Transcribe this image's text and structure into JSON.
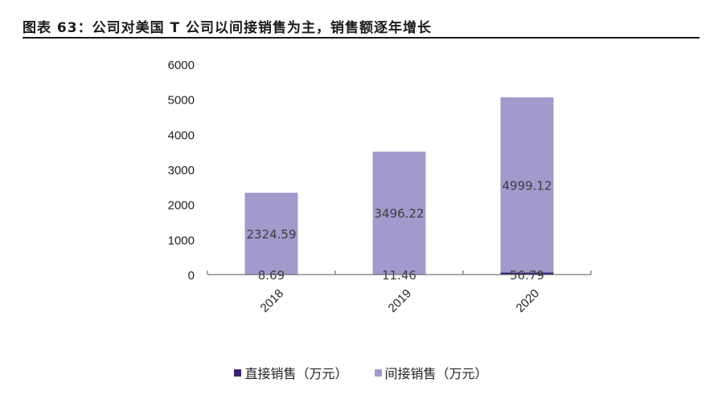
{
  "header": {
    "title": "图表 63：公司对美国 T 公司以间接销售为主，销售额逐年增长"
  },
  "colors": {
    "direct": "#3b2171",
    "indirect": "#a499cc",
    "axis": "#555555",
    "label": "#3d3d3d"
  },
  "chart_data": {
    "type": "bar",
    "stacked": true,
    "categories": [
      "2018",
      "2019",
      "2020"
    ],
    "series": [
      {
        "name": "直接销售（万元）",
        "values": [
          8.69,
          11.46,
          56.79
        ],
        "labels": [
          "8.69",
          "11.46",
          "56.79"
        ]
      },
      {
        "name": "间接销售（万元）",
        "values": [
          2324.59,
          3496.22,
          4999.12
        ],
        "labels": [
          "2324.59",
          "3496.22",
          "4999.12"
        ]
      }
    ],
    "ylim": [
      0,
      6000
    ],
    "yticks": [
      "0",
      "1000",
      "2000",
      "3000",
      "4000",
      "5000",
      "6000"
    ],
    "title": "",
    "xlabel": "",
    "ylabel": "",
    "legend_position": "bottom"
  }
}
